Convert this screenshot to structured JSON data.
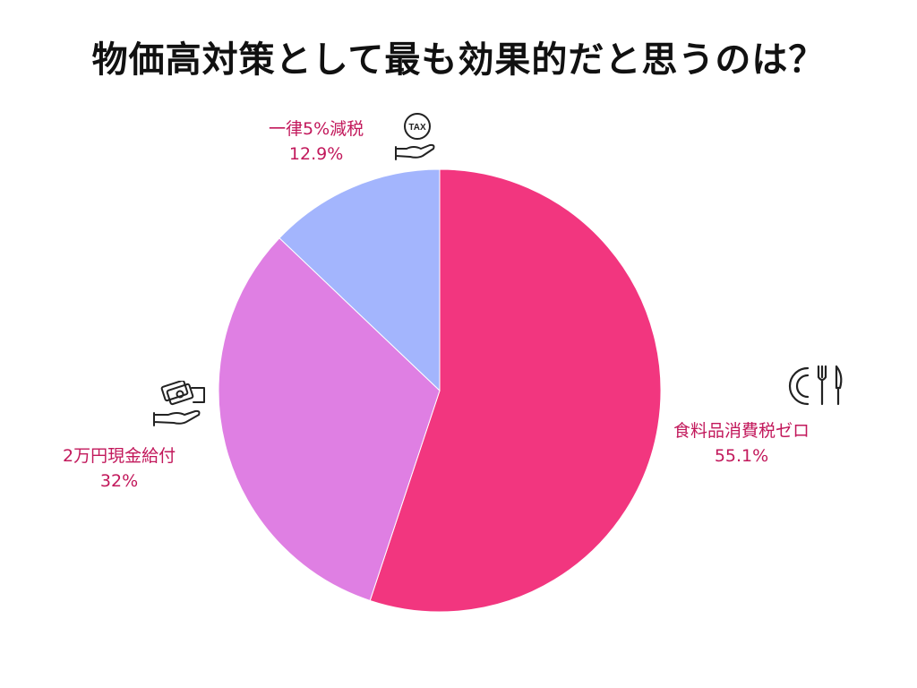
{
  "title": "物価高対策として最も効果的だと思うのは？",
  "chart_data": {
    "type": "pie",
    "title": "物価高対策として最も効果的だと思うのは？",
    "slices": [
      {
        "label": "食料品消費税ゼロ",
        "value": 55.1,
        "value_label": "55.1%",
        "color": "#f2367f",
        "icon": "utensils-icon"
      },
      {
        "label": "2万円現金給付",
        "value": 32,
        "value_label": "32%",
        "color": "#df7fe3",
        "icon": "money-hand-icon"
      },
      {
        "label": "一律5%減税",
        "value": 12.9,
        "value_label": "12.9%",
        "color": "#a3b5fd",
        "icon": "tax-hand-icon"
      }
    ],
    "start_angle": "12 o'clock",
    "direction": "clockwise",
    "legend": "none"
  },
  "icons": {
    "tax_text": "TAX"
  },
  "colors": {
    "label_text": "#c2185b",
    "title_text": "#111111"
  }
}
